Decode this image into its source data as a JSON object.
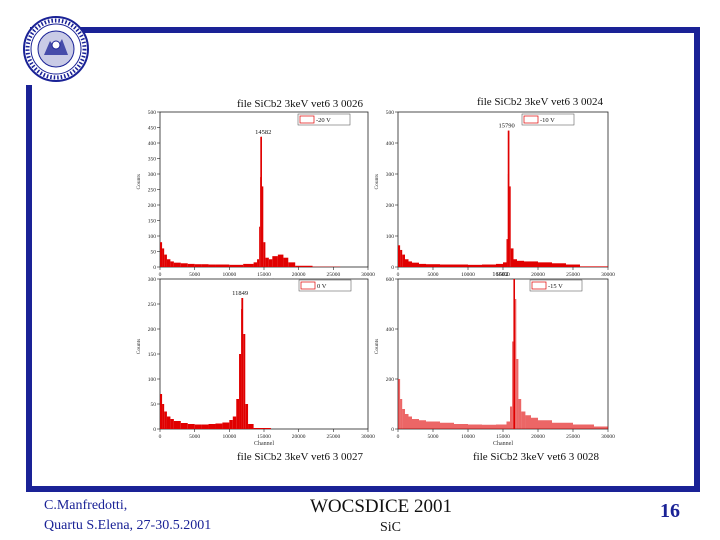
{
  "footer": {
    "author": "C.Manfredotti,",
    "venue": "Quartu S.Elena, 27-30.5.2001",
    "conference": "WOCSDICE 2001",
    "topic": "SiC",
    "page_number": "16"
  },
  "colors": {
    "frame": "#1a2296",
    "histogram": "#e00000"
  },
  "chart_data": [
    {
      "type": "bar",
      "title": "file SiCb2 3keV vet6 3 0026",
      "xlabel": "Channel",
      "ylabel": "Counts",
      "xlim": [
        0,
        30000
      ],
      "ylim": [
        0,
        500
      ],
      "xticks": [
        0,
        5000,
        10000,
        15000,
        20000,
        25000,
        30000
      ],
      "xtick_labels": [
        "0",
        "5000",
        "10000",
        "15000",
        "20000",
        "25000",
        "30000"
      ],
      "yticks": [
        0,
        50,
        100,
        150,
        200,
        250,
        300,
        350,
        400,
        450,
        500
      ],
      "ytick_labels": [
        "0",
        "50",
        "100",
        "150",
        "200",
        "250",
        "300",
        "350",
        "400",
        "450",
        "500"
      ],
      "legend": "-20 V",
      "legend_position": "top-right",
      "peak_label": "14582",
      "peak_channel": 14582,
      "series": [
        {
          "name": "-20 V",
          "x": [
            0,
            300,
            600,
            1000,
            1500,
            2000,
            3000,
            4000,
            5000,
            6000,
            7000,
            8000,
            10000,
            12000,
            13500,
            14000,
            14300,
            14450,
            14582,
            14700,
            14900,
            15200,
            15700,
            16200,
            17000,
            17800,
            18500,
            19500,
            22000,
            26000,
            30000
          ],
          "y": [
            80,
            60,
            40,
            25,
            18,
            14,
            12,
            10,
            9,
            9,
            8,
            8,
            7,
            10,
            15,
            25,
            130,
            290,
            420,
            260,
            80,
            30,
            25,
            35,
            40,
            30,
            15,
            4,
            1,
            0,
            0
          ]
        }
      ]
    },
    {
      "type": "bar",
      "title": "file SiCb2 3keV vet6 3 0024",
      "xlabel": "Channel",
      "ylabel": "Counts",
      "xlim": [
        0,
        30000
      ],
      "ylim": [
        0,
        500
      ],
      "xticks": [
        0,
        5000,
        10000,
        15000,
        20000,
        25000,
        30000
      ],
      "xtick_labels": [
        "0",
        "5000",
        "10000",
        "15000",
        "20000",
        "25000",
        "30000"
      ],
      "yticks": [
        0,
        100,
        200,
        300,
        400,
        500
      ],
      "ytick_labels": [
        "0",
        "100",
        "200",
        "300",
        "400",
        "500"
      ],
      "legend": "-10 V",
      "legend_position": "top-right",
      "peak_label": "15790",
      "peak_channel": 15790,
      "series": [
        {
          "name": "-10 V",
          "x": [
            0,
            300,
            600,
            1000,
            1500,
            2000,
            3000,
            4000,
            6000,
            8000,
            10000,
            12000,
            14000,
            15000,
            15500,
            15700,
            15790,
            15900,
            16100,
            16500,
            17000,
            18000,
            20000,
            22000,
            24000,
            26000,
            30000
          ],
          "y": [
            70,
            55,
            40,
            25,
            18,
            14,
            10,
            9,
            8,
            8,
            7,
            8,
            10,
            15,
            90,
            300,
            440,
            260,
            60,
            25,
            20,
            18,
            15,
            12,
            8,
            2,
            0
          ]
        }
      ]
    },
    {
      "type": "bar",
      "title": "file SiCb2 3keV vet6 3 0027",
      "xlabel": "Channel",
      "ylabel": "Counts",
      "xlim": [
        0,
        30000
      ],
      "ylim": [
        0,
        300
      ],
      "xticks": [
        0,
        5000,
        10000,
        15000,
        20000,
        25000,
        30000
      ],
      "xtick_labels": [
        "0",
        "5000",
        "10000",
        "15000",
        "20000",
        "25000",
        "30000"
      ],
      "yticks": [
        0,
        50,
        100,
        150,
        200,
        250,
        300
      ],
      "ytick_labels": [
        "0",
        "50",
        "100",
        "150",
        "200",
        "250",
        "300"
      ],
      "legend": "0 V",
      "legend_position": "top-right",
      "peak_label": "11849",
      "peak_channel": 11849,
      "series": [
        {
          "name": "0 V",
          "x": [
            0,
            300,
            600,
            1000,
            1500,
            2000,
            3000,
            4000,
            5000,
            6000,
            7000,
            8000,
            9000,
            10000,
            10500,
            11000,
            11400,
            11700,
            11849,
            12000,
            12300,
            12700,
            13500,
            16000,
            20000,
            30000
          ],
          "y": [
            70,
            50,
            35,
            25,
            20,
            16,
            12,
            10,
            9,
            9,
            10,
            11,
            13,
            18,
            25,
            60,
            150,
            240,
            262,
            190,
            50,
            10,
            2,
            0,
            0,
            0
          ]
        }
      ]
    },
    {
      "type": "bar",
      "title": "file SiCb2 3keV vet6 3 0028",
      "xlabel": "Channel",
      "ylabel": "Counts",
      "xlim": [
        0,
        30000
      ],
      "ylim": [
        0,
        600
      ],
      "xticks": [
        0,
        5000,
        10000,
        15000,
        20000,
        25000,
        30000
      ],
      "xtick_labels": [
        "0",
        "5000",
        "10000",
        "15000",
        "20000",
        "25000",
        "30000"
      ],
      "yticks": [
        0,
        200,
        400,
        600
      ],
      "ytick_labels": [
        "0",
        "200",
        "400",
        "600"
      ],
      "legend": "-15 V",
      "legend_position": "top-right",
      "peak_label": "16602",
      "peak_channel": 16602,
      "series": [
        {
          "name": "-15 V",
          "x": [
            0,
            300,
            600,
            1000,
            1500,
            2000,
            3000,
            4000,
            6000,
            8000,
            10000,
            12000,
            14000,
            15500,
            16000,
            16300,
            16500,
            16602,
            16700,
            16900,
            17200,
            17600,
            18200,
            19000,
            20000,
            22000,
            25000,
            28000,
            30000
          ],
          "y": [
            200,
            120,
            80,
            60,
            50,
            40,
            35,
            30,
            25,
            20,
            18,
            17,
            18,
            30,
            90,
            350,
            560,
            610,
            520,
            280,
            120,
            70,
            55,
            45,
            35,
            25,
            18,
            10,
            5
          ]
        }
      ]
    }
  ]
}
